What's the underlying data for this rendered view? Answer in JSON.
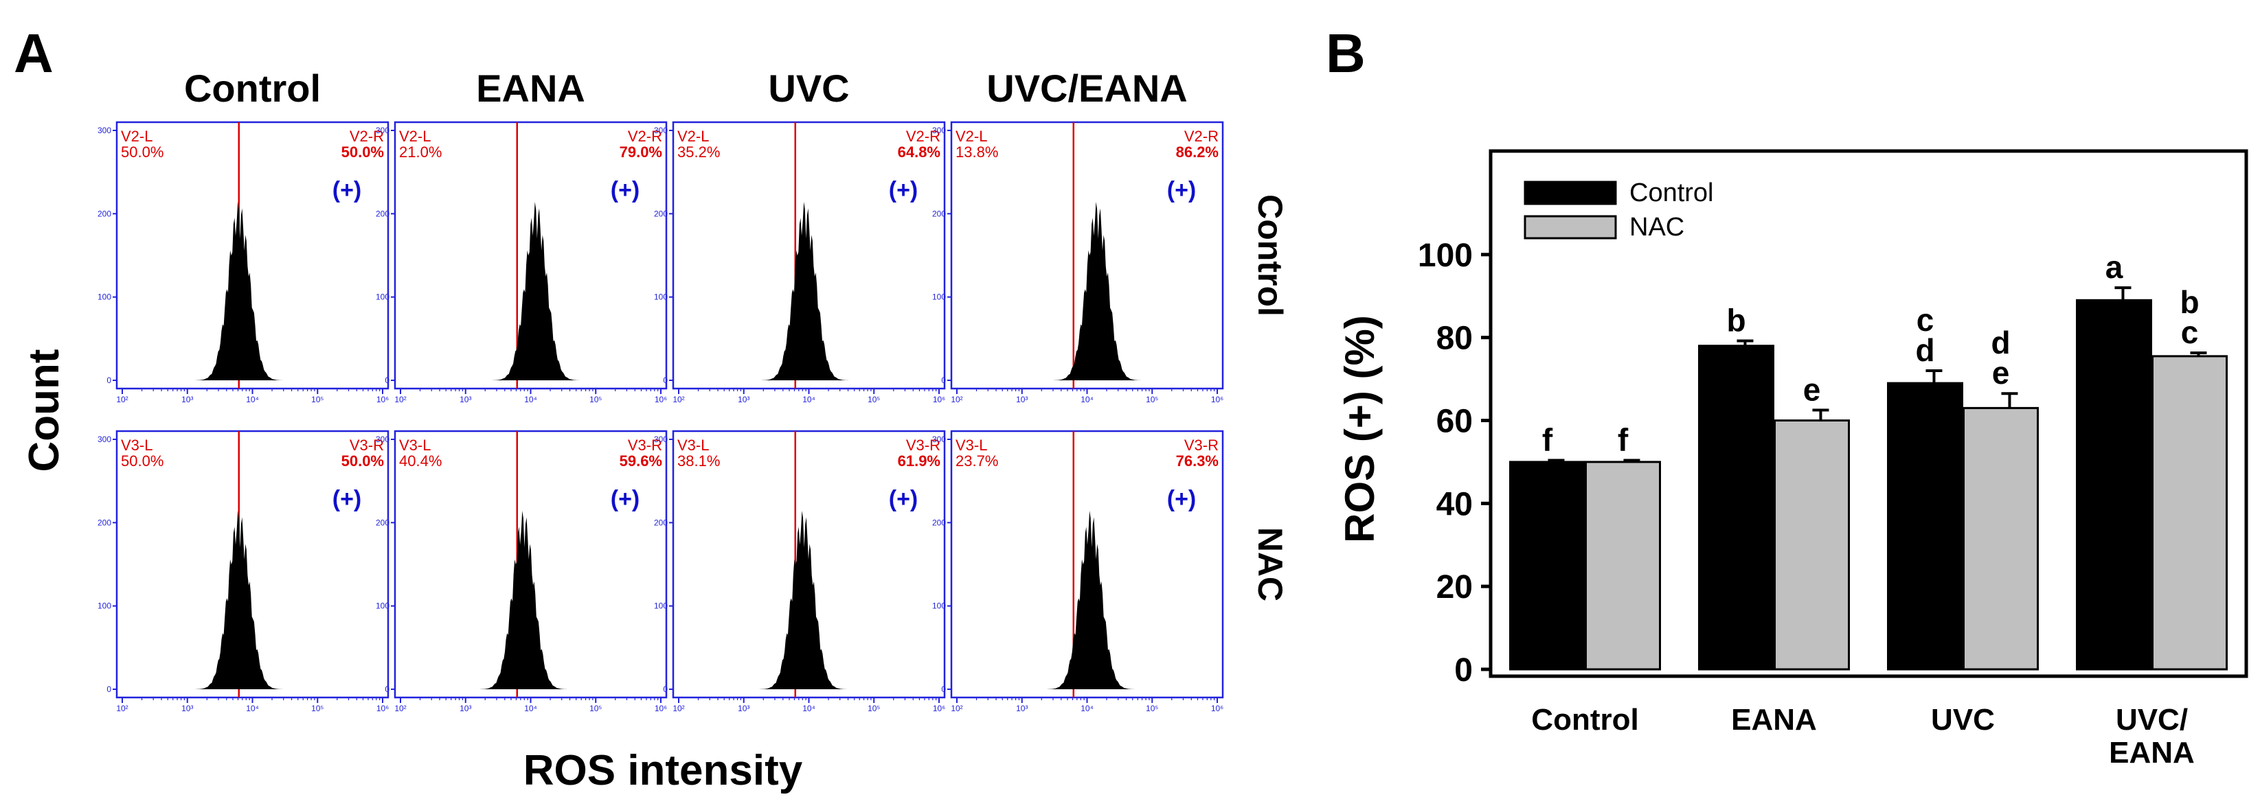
{
  "panel_a": {
    "label": "A",
    "column_titles": [
      "Control",
      "EANA",
      "UVC",
      "UVC/EANA"
    ],
    "row_labels": [
      "Control",
      "NAC"
    ],
    "y_axis_title": "Count",
    "x_axis_title": "ROS intensity",
    "positive_marker": "(+)",
    "y_ticks": [
      "300",
      "200",
      "100",
      "0"
    ],
    "x_ticks": [
      "10²",
      "10³",
      "10⁴",
      "10⁵",
      "10⁶"
    ],
    "colors": {
      "frame": "#2222dd",
      "gate_line": "#dd0000",
      "gate_text": "#dd0000",
      "marker": "#1010cc",
      "histogram": "#000000"
    },
    "rows": [
      [
        {
          "left_name": "V2-L",
          "left_pct": "50.0%",
          "right_name": "V2-R",
          "right_pct": "50.0%"
        },
        {
          "left_name": "V2-L",
          "left_pct": "21.0%",
          "right_name": "V2-R",
          "right_pct": "79.0%"
        },
        {
          "left_name": "V2-L",
          "left_pct": "35.2%",
          "right_name": "V2-R",
          "right_pct": "64.8%"
        },
        {
          "left_name": "V2-L",
          "left_pct": "13.8%",
          "right_name": "V2-R",
          "right_pct": "86.2%"
        }
      ],
      [
        {
          "left_name": "V3-L",
          "left_pct": "50.0%",
          "right_name": "V3-R",
          "right_pct": "50.0%"
        },
        {
          "left_name": "V3-L",
          "left_pct": "40.4%",
          "right_name": "V3-R",
          "right_pct": "59.6%"
        },
        {
          "left_name": "V3-L",
          "left_pct": "38.1%",
          "right_name": "V3-R",
          "right_pct": "61.9%"
        },
        {
          "left_name": "V3-L",
          "left_pct": "23.7%",
          "right_name": "V3-R",
          "right_pct": "76.3%"
        }
      ]
    ]
  },
  "chart_data": {
    "type": "bar",
    "panel_label": "B",
    "title": "",
    "categories": [
      [
        "Control"
      ],
      [
        "EANA"
      ],
      [
        "UVC"
      ],
      [
        "UVC/",
        "EANA"
      ]
    ],
    "ylabel": "ROS (+) (%)",
    "xlabel": "",
    "ylim": [
      0,
      120
    ],
    "yticks": [
      0,
      20,
      40,
      60,
      80,
      100
    ],
    "legend_position": "top-left",
    "series": [
      {
        "name": "Control",
        "color": "#000000",
        "values": [
          50,
          78,
          69,
          89
        ],
        "errors": [
          0.4,
          1.2,
          3.0,
          3.0
        ],
        "letters": [
          [
            "f"
          ],
          [
            "b"
          ],
          [
            "c",
            "d"
          ],
          [
            "a"
          ]
        ]
      },
      {
        "name": "NAC",
        "color": "#c0c0c0",
        "values": [
          50,
          60,
          63,
          75.5
        ],
        "errors": [
          0.4,
          2.5,
          3.5,
          0.8
        ],
        "letters": [
          [
            "f"
          ],
          [
            "e"
          ],
          [
            "d",
            "e"
          ],
          [
            "b",
            "c"
          ]
        ]
      }
    ]
  }
}
